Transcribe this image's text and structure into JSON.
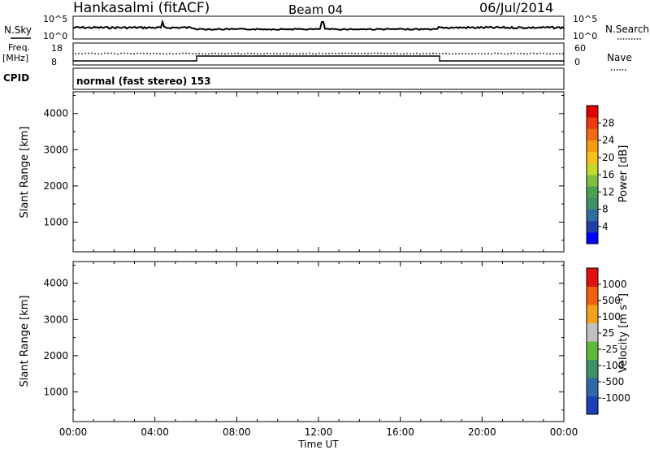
{
  "header": {
    "station": "Hankasalmi (fitACF)",
    "beam": "Beam 04",
    "date": "06/Jul/2014"
  },
  "summary_panels": {
    "nsky_label": "N.Sky",
    "nsearch_label": "N.Search",
    "freq_label_1": "Freq.",
    "freq_label_2": "[MHz]",
    "nave_label": "Nave",
    "cpid_label": "CPID",
    "cpid_text": "normal (fast stereo) 153",
    "left_ticks_top": [
      "10^5",
      "10^0"
    ],
    "right_ticks_top": [
      "10^5",
      "10^0"
    ],
    "left_ticks_freq": [
      "18",
      "8"
    ],
    "right_ticks_nave": [
      "60",
      "0"
    ]
  },
  "chart_data": [
    {
      "type": "heatmap",
      "title": "",
      "xlabel": "Time UT",
      "ylabel": "Slant Range [km]",
      "x_ticks": [
        "00:00",
        "04:00",
        "08:00",
        "12:00",
        "16:00",
        "20:00",
        "00:00"
      ],
      "x_range_hours": [
        0,
        24
      ],
      "y_ticks": [
        1000,
        2000,
        3000,
        4000
      ],
      "ylim": [
        180,
        4600
      ],
      "colorbar": {
        "label": "Power [dB]",
        "ticks": [
          "28",
          "24",
          "20",
          "16",
          "12",
          "8",
          "4"
        ],
        "colors": [
          "#0000ff",
          "#1f3fa8",
          "#2f6e9e",
          "#3f8f6a",
          "#4fa050",
          "#7fc040",
          "#c6d92a",
          "#f6c21a",
          "#f89a14",
          "#f46a10",
          "#ee3a0e",
          "#e00000"
        ]
      }
    },
    {
      "type": "heatmap",
      "title": "",
      "xlabel": "Time UT",
      "ylabel": "Slant Range [km]",
      "x_ticks": [
        "00:00",
        "04:00",
        "08:00",
        "12:00",
        "16:00",
        "20:00",
        "00:00"
      ],
      "x_range_hours": [
        0,
        24
      ],
      "y_ticks": [
        1000,
        2000,
        3000,
        4000
      ],
      "ylim": [
        180,
        4600
      ],
      "colorbar": {
        "label": "Velocity [m s-1]",
        "ticks": [
          "1000",
          "500",
          "100",
          "25",
          "-25",
          "-100",
          "-500",
          "-1000"
        ],
        "colors": [
          "#1c3fb8",
          "#2f6aa8",
          "#3f8f6a",
          "#5fb83a",
          "#c0c0bc",
          "#f4a21a",
          "#f06010",
          "#e01010"
        ]
      }
    }
  ],
  "xlabel_text": "Time UT",
  "ylabel_text": "Slant Range [km]",
  "power_label": "Power [dB]",
  "velocity_label": "Velocity [m s",
  "velocity_sup": "-1",
  "velocity_close": "]"
}
